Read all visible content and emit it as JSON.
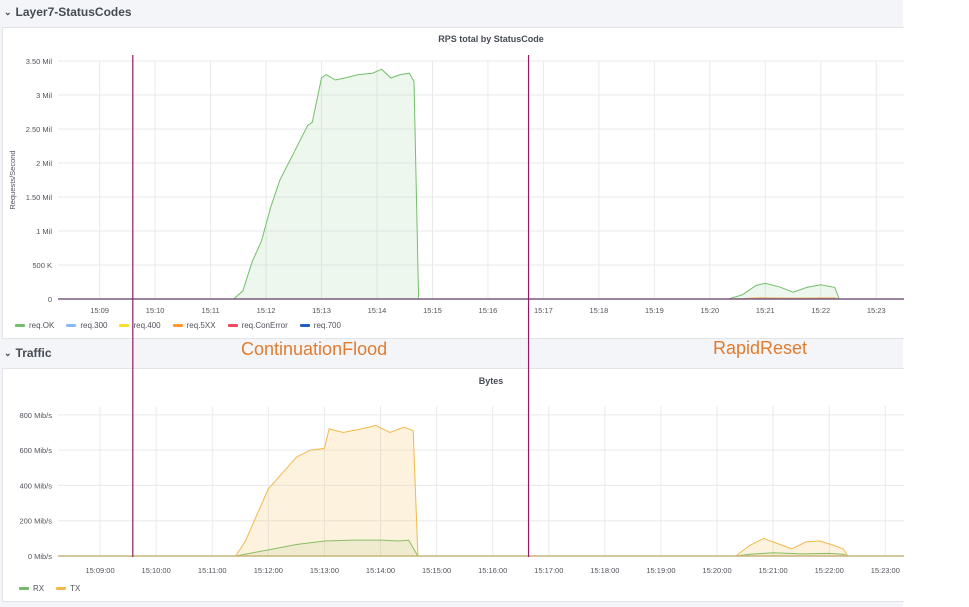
{
  "rows": [
    {
      "title": "Layer7-StatusCodes"
    },
    {
      "title": "Traffic"
    }
  ],
  "annotations": [
    "ContinuationFlood",
    "RapidReset"
  ],
  "colors": {
    "ok": "#73bf69",
    "r300": "#8ab8ff",
    "r400": "#fade2a",
    "r5xx": "#ff9830",
    "conerr": "#f2495c",
    "r700": "#1f60c4",
    "rx": "#73bf69",
    "tx": "#f2b94a",
    "marker": "#8f1a6a"
  },
  "chart_data": [
    {
      "type": "area",
      "title": "RPS total by StatusCode",
      "ylabel": "Requests/Second",
      "ylim": [
        0,
        3500000
      ],
      "yticks": [
        {
          "v": 0,
          "label": "0"
        },
        {
          "v": 500000,
          "label": "500 K"
        },
        {
          "v": 1000000,
          "label": "1 Mil"
        },
        {
          "v": 1500000,
          "label": "1.50 Mil"
        },
        {
          "v": 2000000,
          "label": "2 Mil"
        },
        {
          "v": 2500000,
          "label": "2.50 Mil"
        },
        {
          "v": 3000000,
          "label": "3 Mil"
        },
        {
          "v": 3500000,
          "label": "3.50 Mil"
        }
      ],
      "xlim": [
        "15:08:15",
        "15:23:30"
      ],
      "xticks": [
        {
          "t": "15:09:00",
          "label": "15:09"
        },
        {
          "t": "15:10:00",
          "label": "15:10"
        },
        {
          "t": "15:11:00",
          "label": "15:11"
        },
        {
          "t": "15:12:00",
          "label": "15:12"
        },
        {
          "t": "15:13:00",
          "label": "15:13"
        },
        {
          "t": "15:14:00",
          "label": "15:14"
        },
        {
          "t": "15:15:00",
          "label": "15:15"
        },
        {
          "t": "15:16:00",
          "label": "15:16"
        },
        {
          "t": "15:17:00",
          "label": "15:17"
        },
        {
          "t": "15:18:00",
          "label": "15:18"
        },
        {
          "t": "15:19:00",
          "label": "15:19"
        },
        {
          "t": "15:20:00",
          "label": "15:20"
        },
        {
          "t": "15:21:00",
          "label": "15:21"
        },
        {
          "t": "15:22:00",
          "label": "15:22"
        },
        {
          "t": "15:23:00",
          "label": "15:23"
        }
      ],
      "markers": [
        "15:09:37",
        "15:16:45"
      ],
      "series": [
        {
          "name": "req.OK",
          "color": "#73bf69",
          "x": [
            "15:08:15",
            "15:11:25",
            "15:11:35",
            "15:11:45",
            "15:11:55",
            "15:12:05",
            "15:12:15",
            "15:12:30",
            "15:12:45",
            "15:12:50",
            "15:13:00",
            "15:13:05",
            "15:13:15",
            "15:13:25",
            "15:13:40",
            "15:13:55",
            "15:14:05",
            "15:14:15",
            "15:14:25",
            "15:14:35",
            "15:14:40",
            "15:14:45",
            "15:23:30"
          ],
          "y": [
            0,
            0,
            120000,
            550000,
            850000,
            1350000,
            1750000,
            2150000,
            2550000,
            2600000,
            3250000,
            3300000,
            3220000,
            3250000,
            3300000,
            3320000,
            3380000,
            3250000,
            3300000,
            3320000,
            3200000,
            0,
            0
          ]
        },
        {
          "name": "req.300",
          "color": "#8ab8ff",
          "x": [
            "15:08:15",
            "15:23:30"
          ],
          "y": [
            0,
            0
          ]
        },
        {
          "name": "req.400",
          "color": "#fade2a",
          "x": [
            "15:08:15",
            "15:23:30"
          ],
          "y": [
            0,
            0
          ]
        },
        {
          "name": "req.5XX",
          "color": "#ff9830",
          "x": [
            "15:08:15",
            "15:20:25",
            "15:20:50",
            "15:21:30",
            "15:22:15",
            "15:22:20",
            "15:23:30"
          ],
          "y": [
            0,
            0,
            15000,
            10000,
            15000,
            0,
            0
          ]
        },
        {
          "name": "req.ConError",
          "color": "#f2495c",
          "x": [
            "15:08:15",
            "15:23:30"
          ],
          "y": [
            0,
            0
          ]
        },
        {
          "name": "req.700",
          "color": "#1f60c4",
          "x": [
            "15:08:15",
            "15:23:30"
          ],
          "y": [
            0,
            0
          ]
        }
      ],
      "extra_ok_bump": {
        "x": [
          "15:20:20",
          "15:20:35",
          "15:20:50",
          "15:21:00",
          "15:21:15",
          "15:21:30",
          "15:21:45",
          "15:22:00",
          "15:22:15",
          "15:22:20"
        ],
        "y": [
          0,
          60000,
          200000,
          230000,
          180000,
          100000,
          170000,
          210000,
          170000,
          0
        ]
      }
    },
    {
      "type": "area",
      "title": "Bytes",
      "ylim": [
        0,
        850
      ],
      "yticks": [
        {
          "v": 0,
          "label": "0 Mib/s"
        },
        {
          "v": 200,
          "label": "200 Mib/s"
        },
        {
          "v": 400,
          "label": "400 Mib/s"
        },
        {
          "v": 600,
          "label": "600 Mib/s"
        },
        {
          "v": 800,
          "label": "800 Mib/s"
        }
      ],
      "xlim": [
        "15:08:15",
        "15:23:20"
      ],
      "xticks": [
        {
          "t": "15:09:00",
          "label": "15:09:00"
        },
        {
          "t": "15:10:00",
          "label": "15:10:00"
        },
        {
          "t": "15:11:00",
          "label": "15:11:00"
        },
        {
          "t": "15:12:00",
          "label": "15:12:00"
        },
        {
          "t": "15:13:00",
          "label": "15:13:00"
        },
        {
          "t": "15:14:00",
          "label": "15:14:00"
        },
        {
          "t": "15:15:00",
          "label": "15:15:00"
        },
        {
          "t": "15:16:00",
          "label": "15:16:00"
        },
        {
          "t": "15:17:00",
          "label": "15:17:00"
        },
        {
          "t": "15:18:00",
          "label": "15:18:00"
        },
        {
          "t": "15:19:00",
          "label": "15:19:00"
        },
        {
          "t": "15:20:00",
          "label": "15:20:00"
        },
        {
          "t": "15:21:00",
          "label": "15:21:00"
        },
        {
          "t": "15:22:00",
          "label": "15:22:00"
        },
        {
          "t": "15:23:00",
          "label": "15:23:00"
        }
      ],
      "markers": [
        "15:09:37",
        "15:16:45"
      ],
      "series": [
        {
          "name": "RX",
          "color": "#73bf69",
          "x": [
            "15:08:15",
            "15:11:25",
            "15:11:45",
            "15:12:10",
            "15:12:30",
            "15:13:00",
            "15:13:30",
            "15:14:00",
            "15:14:20",
            "15:14:30",
            "15:14:40",
            "15:20:20",
            "15:20:35",
            "15:21:00",
            "15:21:30",
            "15:22:00",
            "15:22:15",
            "15:22:20",
            "15:23:20"
          ],
          "y": [
            0,
            0,
            20,
            45,
            65,
            85,
            90,
            90,
            85,
            90,
            0,
            0,
            10,
            18,
            12,
            15,
            10,
            0,
            0
          ]
        },
        {
          "name": "TX",
          "color": "#f2b94a",
          "x": [
            "15:08:15",
            "15:11:25",
            "15:11:35",
            "15:11:45",
            "15:12:00",
            "15:12:15",
            "15:12:30",
            "15:12:45",
            "15:13:00",
            "15:13:05",
            "15:13:20",
            "15:13:40",
            "15:13:55",
            "15:14:10",
            "15:14:25",
            "15:14:35",
            "15:14:40",
            "15:20:20",
            "15:20:35",
            "15:20:50",
            "15:21:05",
            "15:21:20",
            "15:21:35",
            "15:21:50",
            "15:22:05",
            "15:22:15",
            "15:22:20",
            "15:23:20"
          ],
          "y": [
            0,
            0,
            80,
            200,
            380,
            470,
            560,
            600,
            610,
            720,
            700,
            720,
            740,
            700,
            730,
            710,
            0,
            0,
            60,
            100,
            70,
            40,
            80,
            85,
            60,
            40,
            0,
            0
          ]
        }
      ]
    }
  ]
}
